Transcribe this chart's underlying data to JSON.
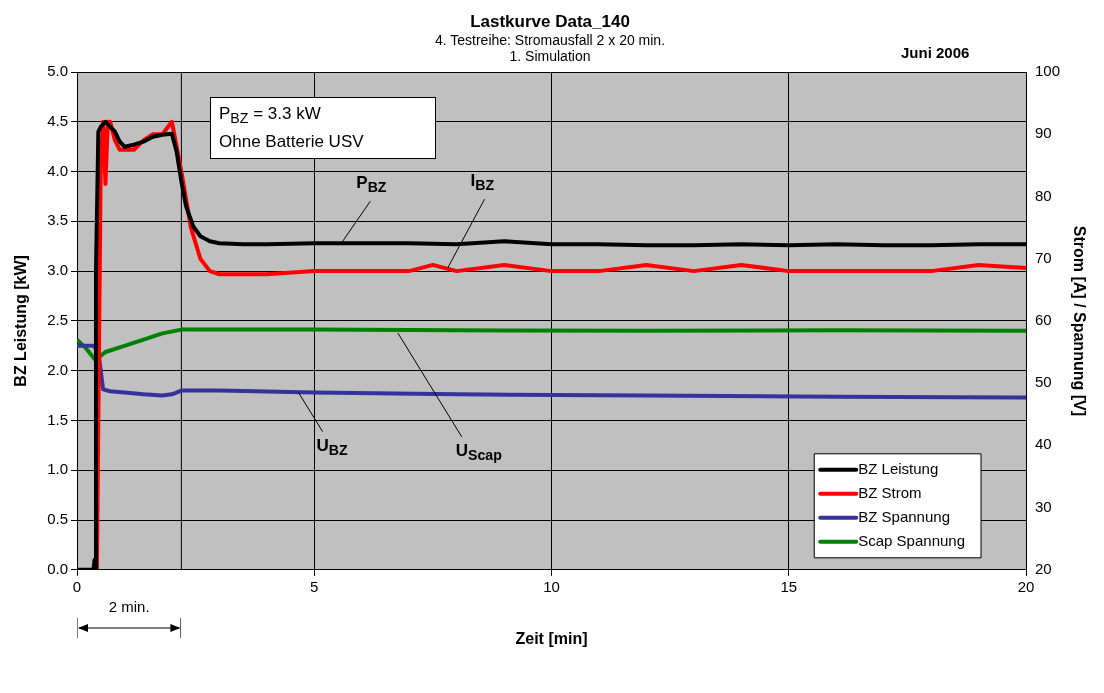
{
  "chart_data": {
    "type": "line",
    "title": "Lastkurve Data_140",
    "subtitle": "4. Testreihe: Stromausfall 2 x 20 min.\n1. Simulation",
    "xlabel": "Zeit [min]",
    "ylabel": "BZ Leistung [kW]",
    "y2label": "Strom [A] / Spannung [V]",
    "xlim": [
      0,
      20
    ],
    "xticks": [
      0,
      5,
      10,
      15,
      20
    ],
    "ylim": [
      0,
      5
    ],
    "yticks": [
      {
        "value": 0,
        "label": "0.0"
      },
      0.5,
      {
        "value": 1,
        "label": "1.0"
      },
      1.5,
      {
        "value": 2,
        "label": "2.0"
      },
      2.5,
      {
        "value": 3,
        "label": "3.0"
      },
      3.5,
      {
        "value": 4,
        "label": "4.0"
      },
      4.5,
      {
        "value": 5,
        "label": "5.0"
      }
    ],
    "y2lim": [
      20,
      100
    ],
    "y2ticks": [
      20,
      30,
      40,
      50,
      60,
      70,
      80,
      90,
      100
    ],
    "grid": true,
    "legend": "bottom right",
    "marker": "none",
    "line_style": "solid",
    "series": [
      {
        "name": "BZ Leistung",
        "color": "#000000",
        "x": [
          0,
          0.35,
          0.37,
          0.39,
          0.4,
          0.45,
          0.5,
          0.6,
          0.7,
          0.8,
          0.9,
          1.0,
          1.2,
          1.4,
          1.6,
          1.8,
          2.0,
          2.1,
          2.2,
          2.3,
          2.45,
          2.6,
          2.8,
          3.0,
          3.5,
          4.0,
          5.0,
          6.0,
          7.0,
          8.0,
          9.0,
          10.0,
          11.0,
          12.0,
          13.0,
          14.0,
          15.0,
          16.0,
          17.0,
          18.0,
          19.0,
          20.0
        ],
        "values": [
          0,
          0,
          0.1,
          0,
          3.0,
          4.4,
          4.45,
          4.5,
          4.45,
          4.4,
          4.3,
          4.25,
          4.27,
          4.3,
          4.35,
          4.37,
          4.38,
          4.2,
          3.9,
          3.65,
          3.45,
          3.35,
          3.3,
          3.28,
          3.27,
          3.27,
          3.28,
          3.28,
          3.28,
          3.27,
          3.3,
          3.27,
          3.27,
          3.26,
          3.26,
          3.27,
          3.26,
          3.27,
          3.26,
          3.26,
          3.27,
          3.27
        ]
      },
      {
        "name": "BZ Strom",
        "color": "#ff0000",
        "axis": "y2",
        "x": [
          0.42,
          0.5,
          0.55,
          0.6,
          0.65,
          0.7,
          0.8,
          0.9,
          1.0,
          1.2,
          1.4,
          1.6,
          1.8,
          2.0,
          2.05,
          2.2,
          2.4,
          2.6,
          2.8,
          3.0,
          4.0,
          5.0,
          6.0,
          7.0,
          7.5,
          8.0,
          9.0,
          10.0,
          11.0,
          12.0,
          13.0,
          14.0,
          15.0,
          16.0,
          17.0,
          18.0,
          19.0,
          20.0
        ],
        "values": [
          20,
          85,
          92,
          82,
          92,
          92,
          89,
          87.5,
          87.5,
          87.5,
          89,
          90,
          90,
          92,
          90,
          84,
          75,
          70,
          68,
          67.5,
          67.5,
          68,
          68,
          68,
          69,
          68,
          69,
          68,
          68,
          69,
          68,
          69,
          68,
          68,
          68,
          68,
          69,
          68.5
        ]
      },
      {
        "name": "BZ Spannung",
        "color": "#333399",
        "axis": "y2",
        "x": [
          0,
          0.35,
          0.45,
          0.55,
          0.7,
          1.0,
          1.4,
          1.8,
          2.0,
          2.2,
          3.0,
          5.0,
          8.0,
          12.0,
          16.0,
          20.0
        ],
        "values": [
          56,
          56,
          55,
          49,
          48.7,
          48.5,
          48.2,
          48,
          48.2,
          48.8,
          48.8,
          48.5,
          48.2,
          48,
          47.8,
          47.7
        ]
      },
      {
        "name": "Scap Spannung",
        "color": "#008000",
        "axis": "y2",
        "x": [
          0,
          0.2,
          0.4,
          0.5,
          0.6,
          1.0,
          1.4,
          1.8,
          2.2,
          3.0,
          5.0,
          8.0,
          12.0,
          16.0,
          20.0
        ],
        "values": [
          57,
          55.5,
          53.6,
          54.4,
          55,
          56,
          57,
          58,
          58.6,
          58.6,
          58.6,
          58.5,
          58.4,
          58.5,
          58.4
        ]
      }
    ],
    "ref_lines": [
      {
        "axis": "x",
        "value": 2.2,
        "color": "#000000"
      }
    ],
    "annotations": [
      "P$_{BZ}$ = 3.3 kW\nOhne Batterie USV",
      "Juni 2006",
      "2 min.",
      {
        "text": "P$_{BZ}$",
        "x": 5.57,
        "y": 3.28
      },
      {
        "text": "I$_{BZ}$",
        "x": 7.81,
        "y": 3.03
      },
      {
        "text": "U$_{BZ}$",
        "x": 4.67,
        "y": 1.78
      },
      {
        "text": "U$_{Scap}$",
        "x": 6.76,
        "y": 2.38
      }
    ]
  }
}
